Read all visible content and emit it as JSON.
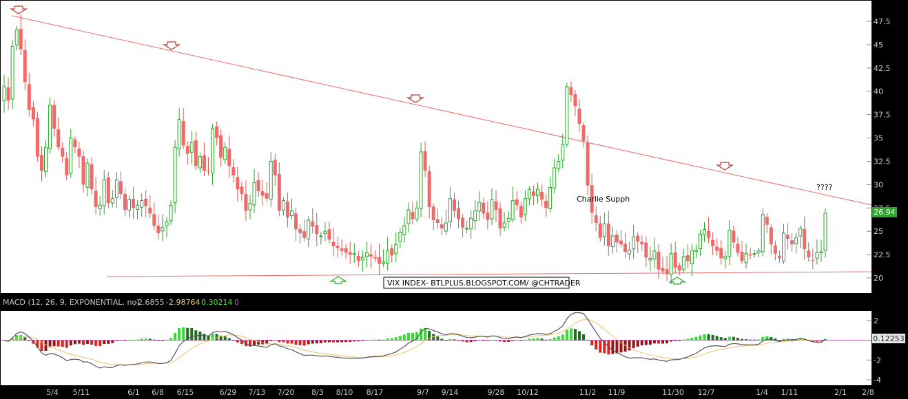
{
  "chart_data": [
    {
      "type": "candlestick",
      "ylim": [
        19,
        49
      ],
      "y_ticks": [
        "47.5",
        "45",
        "42.5",
        "40",
        "37.5",
        "35",
        "32.5",
        "30",
        "27.5",
        "25",
        "22.5",
        "20"
      ],
      "x_ticks": [
        "5/4",
        "5/11",
        "6/1",
        "6/8",
        "6/15",
        "6/29",
        "7/13",
        "7/20",
        "8/3",
        "8/10",
        "8/17",
        "9/7",
        "9/14",
        "9/28",
        "10/12",
        "11/2",
        "11/9",
        "11/30",
        "12/7",
        "1/4",
        "1/11",
        "2/1",
        "2/8"
      ],
      "last_price": "26.94",
      "up_color": "#33cc33",
      "down_color": "#f06a6a",
      "trendline_color": "#f06a6a",
      "annotations": {
        "watermark": "VIX INDEX- BTLPLUS.BLOGSPOT.COM/ @CHTRADER",
        "support_label": "Charlie Supph",
        "question": "????"
      },
      "closes": [
        40.5,
        39,
        44.8,
        46.6,
        44.5,
        41,
        38,
        37,
        33,
        31.5,
        34,
        38.5,
        36,
        34,
        33,
        31,
        35,
        34,
        33,
        30,
        32.3,
        29.5,
        27.6,
        27.8,
        30.5,
        28,
        28.5,
        30.5,
        29,
        27.3,
        28.4,
        27.5,
        27.8,
        28.3,
        27.7,
        26.9,
        25.6,
        24.8,
        25.4,
        26,
        27.8,
        34,
        37,
        34.2,
        33.3,
        34.5,
        32,
        33,
        31.5,
        31.5,
        36,
        35,
        32.9,
        34,
        32,
        31,
        29.5,
        29,
        27.2,
        28,
        30.2,
        29.3,
        28.8,
        28.5,
        32.5,
        31,
        27.2,
        28.3,
        26.5,
        27.2,
        25.2,
        24.8,
        24.3,
        26.2,
        25.5,
        24.7,
        24.5,
        25,
        24.1,
        23.4,
        23.2,
        22.9,
        22.7,
        22.5,
        22.6,
        21.8,
        22.2,
        22.7,
        22.3,
        22.1,
        21.5,
        21.7,
        22.9,
        22.4,
        23.6,
        24.9,
        25.6,
        27.3,
        26.3,
        27.5,
        33.5,
        31.5,
        27.6,
        26.2,
        25.9,
        25.3,
        25.9,
        28.5,
        27.2,
        26.3,
        25.4,
        25.3,
        26.4,
        27.2,
        28.1,
        26.9,
        26.2,
        28.4,
        27.3,
        25.3,
        25.9,
        26.4,
        28.3,
        27.8,
        26.5,
        28.5,
        29.5,
        28.8,
        29.5,
        28.4,
        27.5,
        29.7,
        31.8,
        32.5,
        34.3,
        40.5,
        39.6,
        38.4,
        36.5,
        34.7,
        29.9,
        27,
        25.9,
        24.3,
        25.8,
        23.4,
        24.5,
        23.8,
        23.6,
        22.8,
        23,
        24.4,
        23.9,
        23.6,
        22.2,
        22.1,
        22.9,
        20.9,
        20.7,
        20.4,
        22.6,
        21.1,
        20.8,
        22.3,
        21.8,
        22.9,
        23,
        24.7,
        25.2,
        24.3,
        23.4,
        22.9,
        22.1,
        22.3,
        25.1,
        23.8,
        22.7,
        21.8,
        22.6,
        22.4,
        22.6,
        22.9,
        26.8,
        25.7,
        23.6,
        22.6,
        22.1,
        24.8,
        24.2,
        23.6,
        24.3,
        25.3,
        23.1,
        22.2,
        21.9,
        22.7,
        22.8,
        26.94
      ],
      "macd_panel": {
        "label": "MACD (12, 26, 9, EXPONENTIAL, no)",
        "value1": "-2.6855",
        "value2": "-2.98764",
        "value3": "0.30214",
        "value4": "0",
        "last_hist": "0.12253",
        "ylim": [
          -4.6,
          2.8
        ],
        "y_ticks": [
          "2",
          "0",
          "-2",
          "-4"
        ]
      }
    }
  ]
}
